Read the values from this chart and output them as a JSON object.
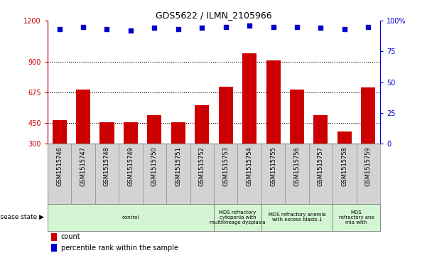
{
  "title": "GDS5622 / ILMN_2105966",
  "samples": [
    "GSM1515746",
    "GSM1515747",
    "GSM1515748",
    "GSM1515749",
    "GSM1515750",
    "GSM1515751",
    "GSM1515752",
    "GSM1515753",
    "GSM1515754",
    "GSM1515755",
    "GSM1515756",
    "GSM1515757",
    "GSM1515758",
    "GSM1515759"
  ],
  "counts": [
    470,
    695,
    455,
    455,
    510,
    455,
    580,
    715,
    960,
    910,
    695,
    510,
    390,
    710
  ],
  "percentiles": [
    93,
    95,
    93,
    92,
    94,
    93,
    94,
    95,
    96,
    95,
    95,
    94,
    93,
    95
  ],
  "bar_color": "#cc0000",
  "dot_color": "#0000cc",
  "ylim_left": [
    300,
    1200
  ],
  "ylim_right": [
    0,
    100
  ],
  "yticks_left": [
    300,
    450,
    675,
    900,
    1200
  ],
  "yticks_right": [
    0,
    25,
    50,
    75,
    100
  ],
  "grid_values": [
    450,
    675,
    900
  ],
  "disease_groups": [
    {
      "label": "control",
      "start": 0,
      "end": 7,
      "color": "#d4f5d4"
    },
    {
      "label": "MDS refractory\ncytopenia with\nmultilineage dysplasia",
      "start": 7,
      "end": 9,
      "color": "#d4f5d4"
    },
    {
      "label": "MDS refractory anemia\nwith excess blasts-1",
      "start": 9,
      "end": 12,
      "color": "#d4f5d4"
    },
    {
      "label": "MDS\nrefractory ane\nmia with",
      "start": 12,
      "end": 14,
      "color": "#d4f5d4"
    }
  ],
  "disease_state_label": "disease state",
  "legend_count_label": "count",
  "legend_percentile_label": "percentile rank within the sample",
  "bar_width": 0.6,
  "fig_width": 6.08,
  "fig_height": 3.63,
  "dpi": 100,
  "sample_bg_color": "#d3d3d3",
  "plot_bg_color": "#ffffff",
  "spine_color": "#888888"
}
